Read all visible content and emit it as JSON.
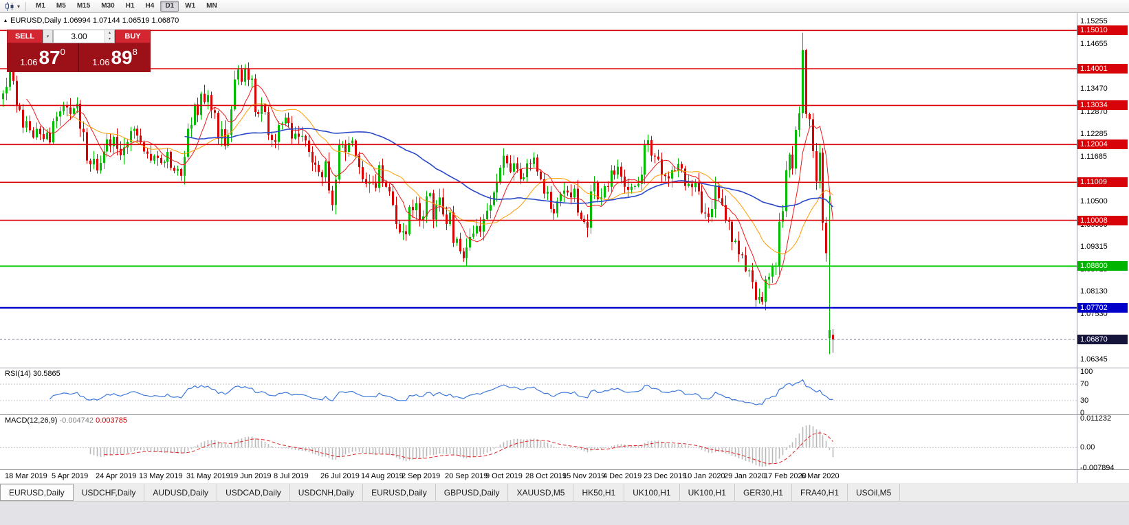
{
  "icons": {
    "caret_down": "▾",
    "caret_up": "▴",
    "expand": "▴"
  },
  "toolbar": {
    "timeframes": [
      "M1",
      "M5",
      "M15",
      "M30",
      "H1",
      "H4",
      "D1",
      "W1",
      "MN"
    ],
    "active_timeframe": "D1"
  },
  "chart": {
    "title": "EURUSD,Daily 1.06994 1.07144 1.06519 1.06870",
    "symbol": "EURUSD",
    "period": "Daily",
    "open": "1.06994",
    "high": "1.07144",
    "low": "1.06519",
    "close": "1.06870"
  },
  "trade_panel": {
    "sell_label": "SELL",
    "buy_label": "BUY",
    "amount": "3.00",
    "sell_price": {
      "prefix": "1.06",
      "big": "87",
      "sup": "0"
    },
    "buy_price": {
      "prefix": "1.06",
      "big": "89",
      "sup": "8"
    }
  },
  "price_axis": [
    {
      "text": "1.15255",
      "value": 1.15255,
      "type": "normal"
    },
    {
      "text": "1.15010",
      "value": 1.1501,
      "type": "red"
    },
    {
      "text": "1.14655",
      "value": 1.14655,
      "type": "normal"
    },
    {
      "text": "1.14001",
      "value": 1.14001,
      "type": "red"
    },
    {
      "text": "1.13470",
      "value": 1.1347,
      "type": "normal"
    },
    {
      "text": "1.13034",
      "value": 1.13034,
      "type": "red"
    },
    {
      "text": "1.12870",
      "value": 1.1287,
      "type": "normal"
    },
    {
      "text": "1.12285",
      "value": 1.12285,
      "type": "normal"
    },
    {
      "text": "1.12004",
      "value": 1.12004,
      "type": "red"
    },
    {
      "text": "1.11685",
      "value": 1.11685,
      "type": "normal"
    },
    {
      "text": "1.11009",
      "value": 1.11009,
      "type": "red"
    },
    {
      "text": "1.10500",
      "value": 1.105,
      "type": "normal"
    },
    {
      "text": "1.10008",
      "value": 1.10008,
      "type": "red"
    },
    {
      "text": "1.09900",
      "value": 1.099,
      "type": "normal"
    },
    {
      "text": "1.09315",
      "value": 1.09315,
      "type": "normal"
    },
    {
      "text": "1.08715",
      "value": 1.08715,
      "type": "normal"
    },
    {
      "text": "1.08800",
      "value": 1.088,
      "type": "green"
    },
    {
      "text": "1.08130",
      "value": 1.0813,
      "type": "normal"
    },
    {
      "text": "1.07702",
      "value": 1.07702,
      "type": "blue"
    },
    {
      "text": "1.07530",
      "value": 1.0753,
      "type": "normal"
    },
    {
      "text": "1.06870",
      "value": 1.0687,
      "type": "current"
    },
    {
      "text": "1.06345",
      "value": 1.06345,
      "type": "normal"
    }
  ],
  "rsi_panel": {
    "name": "RSI(14)",
    "value": "30.5865",
    "scale": [
      {
        "v": 100,
        "t": "100"
      },
      {
        "v": 70,
        "t": "70"
      },
      {
        "v": 30,
        "t": "30"
      },
      {
        "v": 0,
        "t": "0"
      }
    ]
  },
  "macd_panel": {
    "name": "MACD(12,26,9)",
    "main_value": "-0.004742",
    "signal_value": "0.003785",
    "scale": [
      {
        "v": 0.011232,
        "t": "0.011232"
      },
      {
        "v": 0,
        "t": "0.00"
      },
      {
        "v": -0.007894,
        "t": "-0.007894"
      }
    ]
  },
  "tabs": [
    {
      "label": "EURUSD,Daily",
      "active": true
    },
    {
      "label": "USDCHF,Daily"
    },
    {
      "label": "AUDUSD,Daily"
    },
    {
      "label": "USDCAD,Daily"
    },
    {
      "label": "USDCNH,Daily"
    },
    {
      "label": "EURUSD,Daily"
    },
    {
      "label": "GBPUSD,Daily"
    },
    {
      "label": "XAUUSD,M5"
    },
    {
      "label": "HK50,H1"
    },
    {
      "label": "UK100,H1"
    },
    {
      "label": "UK100,H1"
    },
    {
      "label": "GER30,H1"
    },
    {
      "label": "FRA40,H1"
    },
    {
      "label": "USOil,M5"
    }
  ],
  "chart_data": {
    "type": "candlestick",
    "symbol": "EURUSD",
    "timeframe": "Daily",
    "price_range": [
      1.0618,
      1.1545
    ],
    "macd_scale": [
      -0.007894,
      0.011232
    ],
    "rsi_period": 14,
    "macd_periods": [
      12,
      26,
      9
    ],
    "first_open": 1.132,
    "closes": [
      1.1335,
      1.1352,
      1.141,
      1.1368,
      1.1302,
      1.1292,
      1.1245,
      1.1262,
      1.1238,
      1.1219,
      1.1242,
      1.1228,
      1.1215,
      1.1232,
      1.1206,
      1.1262,
      1.1274,
      1.1288,
      1.1304,
      1.1298,
      1.1281,
      1.1296,
      1.1308,
      1.1242,
      1.1233,
      1.1158,
      1.1148,
      1.1163,
      1.1132,
      1.1152,
      1.1182,
      1.1214,
      1.1196,
      1.1221,
      1.1189,
      1.1172,
      1.1193,
      1.1207,
      1.1236,
      1.1242,
      1.1224,
      1.1206,
      1.1182,
      1.1176,
      1.1158,
      1.1171,
      1.1165,
      1.1152,
      1.1155,
      1.1181,
      1.1139,
      1.1131,
      1.1136,
      1.1118,
      1.1168,
      1.1242,
      1.1252,
      1.1306,
      1.1278,
      1.1334,
      1.1312,
      1.1331,
      1.1291,
      1.1284,
      1.1216,
      1.1241,
      1.1197,
      1.1226,
      1.1293,
      1.1372,
      1.1398,
      1.1366,
      1.14,
      1.1371,
      1.1374,
      1.1286,
      1.1281,
      1.1306,
      1.1286,
      1.1226,
      1.1212,
      1.1207,
      1.1252,
      1.1256,
      1.1271,
      1.1257,
      1.1216,
      1.1229,
      1.1221,
      1.1223,
      1.1211,
      1.1181,
      1.1153,
      1.1147,
      1.1128,
      1.1114,
      1.1156,
      1.1079,
      1.1041,
      1.1108,
      1.1199,
      1.1201,
      1.1181,
      1.1204,
      1.1211,
      1.1171,
      1.1141,
      1.1109,
      1.1097,
      1.1101,
      1.1099,
      1.1086,
      1.1146,
      1.1101,
      1.1089,
      1.1077,
      1.1041,
      1.0991,
      1.0969,
      1.0972,
      1.0964,
      1.1036,
      1.1027,
      1.1046,
      1.1001,
      1.1011,
      1.1064,
      1.1072,
      1.1003,
      1.1041,
      1.1061,
      1.1016,
      1.0991,
      1.1021,
      1.0941,
      1.0952,
      1.0919,
      1.0901,
      1.0929,
      1.0957,
      1.0966,
      1.0986,
      1.0971,
      1.1004,
      1.1026,
      1.1041,
      1.1074,
      1.1101,
      1.1139,
      1.1171,
      1.1151,
      1.1129,
      1.1151,
      1.1136,
      1.1109,
      1.1114,
      1.1151,
      1.1149,
      1.1166,
      1.1129,
      1.1109,
      1.1071,
      1.1076,
      1.1031,
      1.1019,
      1.1051,
      1.1071,
      1.1079,
      1.1074,
      1.1061,
      1.1084,
      1.1021,
      1.1004,
      1.0996,
      1.0981,
      1.1077,
      1.1102,
      1.1056,
      1.1061,
      1.1091,
      1.1089,
      1.1132,
      1.1121,
      1.1142,
      1.1116,
      1.1089,
      1.1081,
      1.1089,
      1.1091,
      1.1097,
      1.1121,
      1.1199,
      1.1212,
      1.1171,
      1.1169,
      1.1161,
      1.1121,
      1.1117,
      1.1111,
      1.1133,
      1.1131,
      1.1149,
      1.1137,
      1.1091,
      1.1097,
      1.1088,
      1.1101,
      1.1077,
      1.1021,
      1.1019,
      1.1009,
      1.1031,
      1.1092,
      1.1059,
      1.1041,
      1.0999,
      1.0997,
      1.0944,
      1.0947,
      1.0911,
      1.0909,
      1.0867,
      1.0869,
      1.0838,
      1.0791,
      1.0799,
      1.0786,
      1.0845,
      1.0852,
      1.0879,
      1.0881,
      1.0997,
      1.1025,
      1.1133,
      1.1174,
      1.1137,
      1.1239,
      1.1283,
      1.1449,
      1.1281,
      1.1267,
      1.1183,
      1.1104,
      1.1179,
      1.0994,
      1.0914,
      1.0692,
      1.0687
    ],
    "overrides": {
      "2": {
        "h": 1.1448
      },
      "72": {
        "h": 1.1412
      },
      "98": {
        "l": 1.1026
      },
      "138": {
        "l": 1.0879
      },
      "226": {
        "l": 1.0778
      },
      "238": {
        "h": 1.1495
      },
      "246": {
        "o": 1.069,
        "c": 1.0712,
        "h": 1.1065,
        "l": 1.0648
      },
      "247": {
        "o": 1.0699,
        "h": 1.0714,
        "l": 1.0652,
        "c": 1.0687
      }
    },
    "ma": [
      {
        "period": 8,
        "color": "#f01818",
        "width": 1
      },
      {
        "period": 20,
        "color": "#ff9c00",
        "width": 1
      },
      {
        "period": 55,
        "color": "#2848c8",
        "width": 1.6
      }
    ],
    "hlines": [
      {
        "price": 1.1501,
        "color": "#dc0307",
        "w": 1.6
      },
      {
        "price": 1.14001,
        "color": "#dc0307",
        "w": 1.6
      },
      {
        "price": 1.13034,
        "color": "#dc0307",
        "w": 1.6
      },
      {
        "price": 1.12004,
        "color": "#dc0307",
        "w": 1.6
      },
      {
        "price": 1.11009,
        "color": "#dc0307",
        "w": 1.6
      },
      {
        "price": 1.10008,
        "color": "#dc0307",
        "w": 1.6
      },
      {
        "price": 1.088,
        "color": "#00cc00",
        "w": 1.8
      },
      {
        "price": 1.07702,
        "color": "#0000cd",
        "w": 2.4
      },
      {
        "price": 1.0687,
        "color": "#777788",
        "w": 1,
        "dash": true
      }
    ],
    "x_labels": [
      [
        0,
        "18 Mar 2019"
      ],
      [
        14,
        "5 Apr 2019"
      ],
      [
        27,
        "24 Apr 2019"
      ],
      [
        40,
        "13 May 2019"
      ],
      [
        54,
        "31 May 2019"
      ],
      [
        67,
        "19 Jun 2019"
      ],
      [
        80,
        "8 Jul 2019"
      ],
      [
        94,
        "26 Jul 2019"
      ],
      [
        106,
        "14 Aug 2019"
      ],
      [
        118,
        "2 Sep 2019"
      ],
      [
        131,
        "20 Sep 2019"
      ],
      [
        143,
        "9 Oct 2019"
      ],
      [
        155,
        "28 Oct 2019"
      ],
      [
        166,
        "15 Nov 2019"
      ],
      [
        178,
        "4 Dec 2019"
      ],
      [
        190,
        "23 Dec 2019"
      ],
      [
        202,
        "10 Jan 2020"
      ],
      [
        214,
        "29 Jan 2020"
      ],
      [
        226,
        "17 Feb 2020"
      ],
      [
        237,
        "6 Mar 2020"
      ]
    ],
    "colors": {
      "bull": "#00bd00",
      "bear": "#dd0000",
      "rsi": "#3c78dc",
      "macd_hist": "#b9b9b9",
      "macd_signal": "#e02020"
    }
  }
}
